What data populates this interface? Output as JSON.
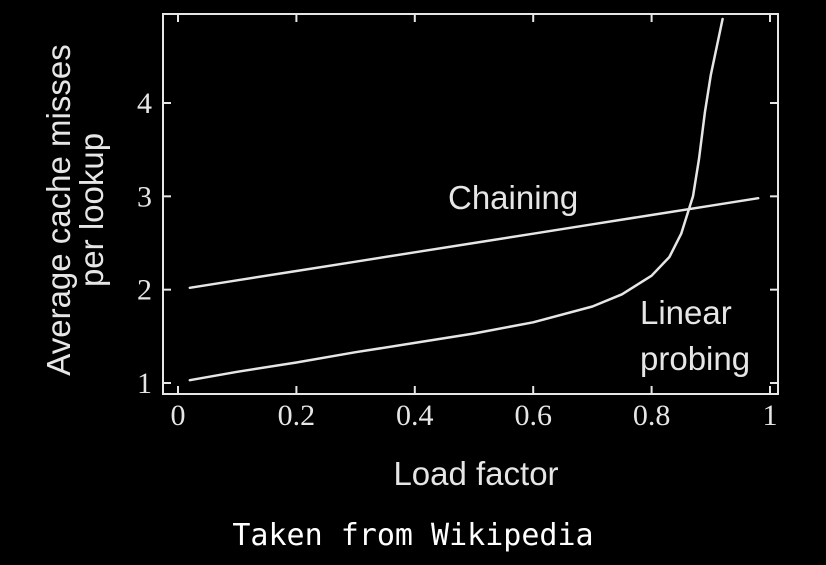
{
  "chart_data": {
    "type": "line",
    "xlabel": "Load factor",
    "ylabel": [
      "Average cache misses",
      "per lookup"
    ],
    "xlim": [
      0,
      1
    ],
    "ylim": [
      1,
      4.9
    ],
    "xticks": [
      0,
      0.2,
      0.4,
      0.6,
      0.8,
      1
    ],
    "xtick_labels": [
      "0",
      "0.2",
      "0.4",
      "0.6",
      "0.8",
      "1"
    ],
    "yticks": [
      1,
      2,
      3,
      4
    ],
    "ytick_labels": [
      "1",
      "2",
      "3",
      "4"
    ],
    "grid": false,
    "series": [
      {
        "name": "Chaining",
        "x": [
          0.02,
          0.1,
          0.2,
          0.3,
          0.4,
          0.5,
          0.6,
          0.7,
          0.8,
          0.9,
          0.98
        ],
        "y": [
          2.02,
          2.1,
          2.2,
          2.3,
          2.4,
          2.5,
          2.6,
          2.7,
          2.8,
          2.9,
          2.98
        ]
      },
      {
        "name": "Linear probing",
        "x": [
          0.02,
          0.1,
          0.2,
          0.3,
          0.4,
          0.5,
          0.6,
          0.7,
          0.75,
          0.8,
          0.83,
          0.85,
          0.87,
          0.88,
          0.89,
          0.9,
          0.91,
          0.92
        ],
        "y": [
          1.03,
          1.12,
          1.22,
          1.33,
          1.43,
          1.53,
          1.65,
          1.82,
          1.95,
          2.15,
          2.35,
          2.6,
          3.0,
          3.4,
          3.9,
          4.3,
          4.6,
          4.9
        ]
      }
    ],
    "annotations": [
      "Chaining",
      "Linear",
      "probing"
    ]
  },
  "caption": "Taken from Wikipedia",
  "colors": {
    "background": "#000000",
    "foreground": "#e6e6e6"
  }
}
